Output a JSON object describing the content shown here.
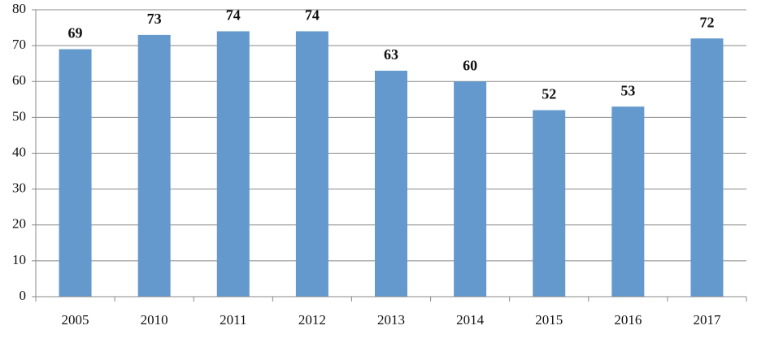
{
  "chart_data": {
    "type": "bar",
    "categories": [
      "2005",
      "2010",
      "2011",
      "2012",
      "2013",
      "2014",
      "2015",
      "2016",
      "2017"
    ],
    "values": [
      69,
      73,
      74,
      74,
      63,
      60,
      52,
      53,
      72
    ],
    "color": "#6399cc",
    "ylim": [
      0,
      80
    ],
    "yticks": [
      0,
      10,
      20,
      30,
      40,
      50,
      60,
      70,
      80
    ],
    "grid": true
  }
}
